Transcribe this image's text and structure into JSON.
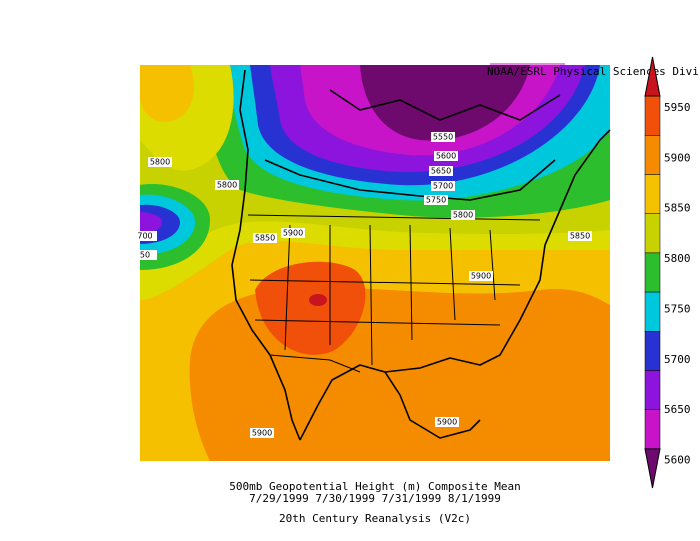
{
  "header": {
    "source": "NOAA/ESRL Physical Sciences Division"
  },
  "caption": {
    "title": "500mb Geopotential Height (m) Composite Mean",
    "dates": "7/29/1999 7/30/1999 7/31/1999 8/1/1999",
    "dataset": "20th Century Reanalysis (V2c)"
  },
  "colorbar": {
    "labels": [
      5950,
      5900,
      5850,
      5800,
      5750,
      5700,
      5650,
      5600
    ],
    "colors": [
      "#c8141e",
      "#f0500a",
      "#f58c00",
      "#f5c000",
      "#c8d200",
      "#2dbe2d",
      "#00c8dc",
      "#2832d2",
      "#8c14dc",
      "#c814c8",
      "#6e0a6e"
    ]
  },
  "contour_labels": [
    "5800",
    "5800",
    "5850",
    "5900",
    "5550",
    "5600",
    "5650",
    "5700",
    "5750",
    "5800",
    "5850",
    "5900",
    "5900",
    "5900",
    "700",
    "50"
  ]
}
